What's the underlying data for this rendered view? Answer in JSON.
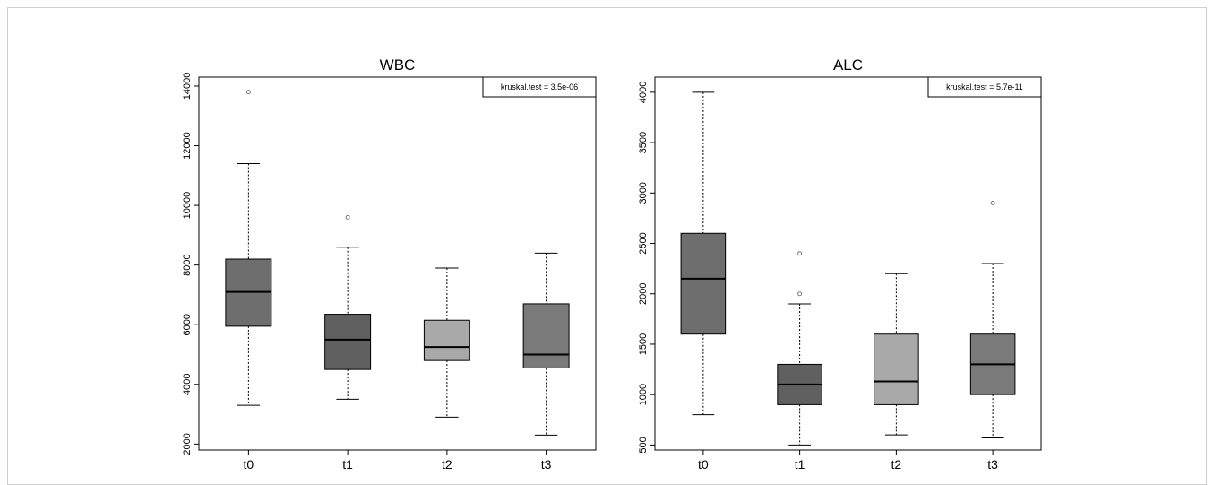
{
  "chart_data": [
    {
      "type": "box",
      "title": "WBC",
      "categories": [
        "t0",
        "t1",
        "t2",
        "t3"
      ],
      "ylim": [
        1800,
        14300
      ],
      "yticks": [
        2000,
        4000,
        6000,
        8000,
        10000,
        12000,
        14000
      ],
      "annotation": "kruskal.test = 3.5e-06",
      "boxes": [
        {
          "min": 3300,
          "q1": 5950,
          "median": 7100,
          "q3": 8200,
          "max": 11400,
          "outliers": [
            13800
          ],
          "color": "#6e6e6e"
        },
        {
          "min": 3500,
          "q1": 4500,
          "median": 5500,
          "q3": 6350,
          "max": 8600,
          "outliers": [
            9600
          ],
          "color": "#606060"
        },
        {
          "min": 2900,
          "q1": 4800,
          "median": 5250,
          "q3": 6150,
          "max": 7900,
          "outliers": [],
          "color": "#a9a9a9"
        },
        {
          "min": 2300,
          "q1": 4550,
          "median": 5000,
          "q3": 6700,
          "max": 8400,
          "outliers": [],
          "color": "#7a7a7a"
        }
      ]
    },
    {
      "type": "box",
      "title": "ALC",
      "categories": [
        "t0",
        "t1",
        "t2",
        "t3"
      ],
      "ylim": [
        450,
        4150
      ],
      "yticks": [
        500,
        1000,
        1500,
        2000,
        2500,
        3000,
        3500,
        4000
      ],
      "annotation": "kruskal.test = 5.7e-11",
      "boxes": [
        {
          "min": 800,
          "q1": 1600,
          "median": 2150,
          "q3": 2600,
          "max": 4000,
          "outliers": [],
          "color": "#6e6e6e"
        },
        {
          "min": 500,
          "q1": 900,
          "median": 1100,
          "q3": 1300,
          "max": 1900,
          "outliers": [
            2000,
            2400
          ],
          "color": "#606060"
        },
        {
          "min": 600,
          "q1": 900,
          "median": 1130,
          "q3": 1600,
          "max": 2200,
          "outliers": [],
          "color": "#a9a9a9"
        },
        {
          "min": 570,
          "q1": 1000,
          "median": 1300,
          "q3": 1600,
          "max": 2300,
          "outliers": [
            2900
          ],
          "color": "#7a7a7a"
        }
      ]
    }
  ]
}
